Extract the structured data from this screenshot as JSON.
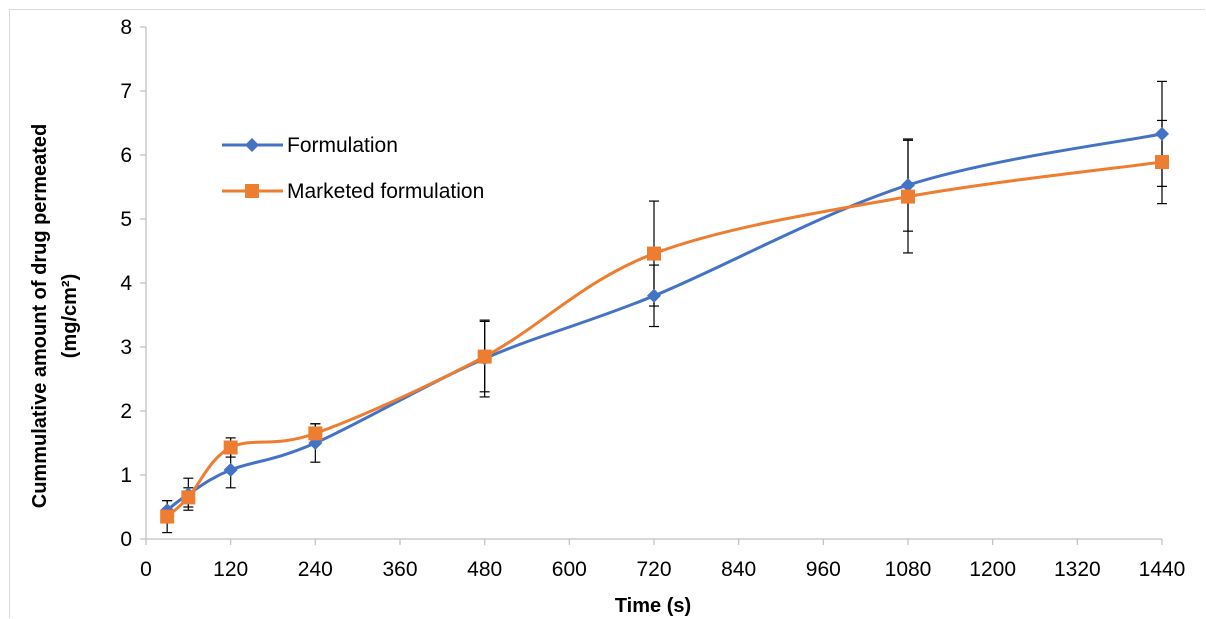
{
  "chart_data": {
    "type": "line",
    "title": "",
    "xlabel": "Time (s)",
    "ylabel_line1": "Cummulative amount  of drug permeated",
    "ylabel_line2": "(mg/cm²)",
    "xlim": [
      0,
      1440
    ],
    "ylim": [
      0,
      8
    ],
    "xticks": [
      0,
      120,
      240,
      360,
      480,
      600,
      720,
      840,
      960,
      1080,
      1200,
      1320,
      1440
    ],
    "yticks": [
      0,
      1,
      2,
      3,
      4,
      5,
      6,
      7,
      8
    ],
    "grid": false,
    "legend_position": "left-upper",
    "x": [
      30,
      60,
      120,
      240,
      480,
      720,
      1080,
      1440
    ],
    "series": [
      {
        "name": "Formulation",
        "color": "#4472c4",
        "marker": "diamond",
        "values": [
          0.45,
          0.7,
          1.08,
          1.5,
          2.82,
          3.8,
          5.53,
          6.33
        ],
        "error": [
          0.15,
          0.25,
          0.28,
          0.3,
          0.6,
          0.48,
          0.72,
          0.82
        ]
      },
      {
        "name": "Marketed formulation",
        "color": "#ed7d31",
        "marker": "square",
        "values": [
          0.35,
          0.65,
          1.43,
          1.65,
          2.85,
          4.46,
          5.35,
          5.89
        ],
        "error": [
          0.25,
          0.15,
          0.15,
          0.15,
          0.55,
          0.82,
          0.88,
          0.65
        ]
      }
    ]
  }
}
